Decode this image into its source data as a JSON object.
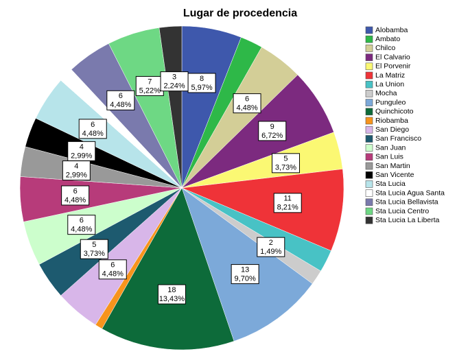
{
  "chart_data": {
    "type": "pie",
    "title": "Lugar de procedencia",
    "categories": [
      "Alobamba",
      "Ambato",
      "Chilco",
      "El Calvario",
      "El Porvenir",
      "La Matriz",
      "La Union",
      "Mocha",
      "Punguleo",
      "Quinchicoto",
      "Riobamba",
      "San Diego",
      "San Francisco",
      "San Juan",
      "San Luis",
      "San Martin",
      "San Vicente",
      "Sta Lucia",
      "Sta Lucia Agua Santa",
      "Sta Lucia Bellavista",
      "Sta Lucia Centro",
      "Sta Lucia La Liberta"
    ],
    "values": [
      8,
      3,
      6,
      9,
      5,
      11,
      3,
      2,
      13,
      18,
      1,
      6,
      5,
      6,
      6,
      4,
      4,
      6,
      2,
      6,
      7,
      3
    ],
    "percentage_labels": [
      "5,97%",
      null,
      "4,48%",
      "6,72%",
      "3,73%",
      "8,21%",
      null,
      "1,49%",
      "9,70%",
      "13,43%",
      null,
      "4,48%",
      "3,73%",
      "4,48%",
      "4,48%",
      "2,99%",
      "2,99%",
      "4,48%",
      null,
      "4,48%",
      "5,22%",
      "2,24%"
    ],
    "percentages": [
      5.97,
      null,
      4.48,
      6.72,
      3.73,
      8.21,
      null,
      1.49,
      9.7,
      13.43,
      null,
      4.48,
      3.73,
      4.48,
      4.48,
      2.99,
      2.99,
      4.48,
      null,
      4.48,
      5.22,
      2.24
    ],
    "colors": [
      "#3e58ac",
      "#2eb848",
      "#d3ce97",
      "#7c2a7f",
      "#fbf873",
      "#ef3338",
      "#48c2c5",
      "#cccccc",
      "#7ca9d9",
      "#0d6b3a",
      "#f7941d",
      "#d8b6e9",
      "#1d5a6f",
      "#ccfecc",
      "#b73b7a",
      "#999999",
      "#000000",
      "#b7e4ea",
      "#ffffff",
      "#7a7aad",
      "#6ed884",
      "#333333"
    ],
    "legend": "right"
  }
}
